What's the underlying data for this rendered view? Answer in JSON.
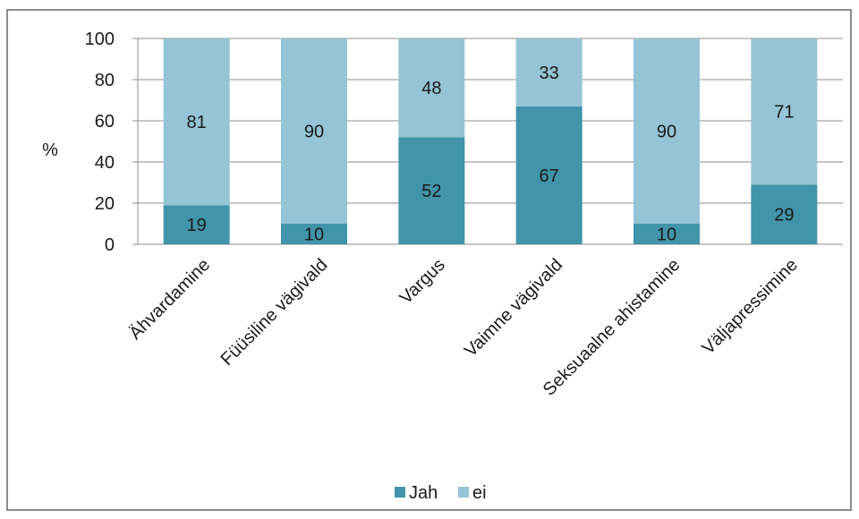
{
  "chart_data": {
    "type": "bar",
    "stacked": true,
    "percent": true,
    "categories": [
      "Ähvardamine",
      "Füüsiline vägivald",
      "Vargus",
      "Vaimne vägivald",
      "Seksuaalne ahistamine",
      "Väljapressimine"
    ],
    "series": [
      {
        "name": "Jah",
        "values": [
          19,
          10,
          52,
          67,
          10,
          29
        ],
        "color": "#4194aa"
      },
      {
        "name": "ei",
        "values": [
          81,
          90,
          48,
          33,
          90,
          71
        ],
        "color": "#94c4d5"
      }
    ],
    "title": "",
    "xlabel": "",
    "ylabel": "%",
    "ylim": [
      0,
      100
    ],
    "yticks": [
      0,
      20,
      40,
      60,
      80,
      100
    ],
    "grid": true,
    "legend": "bottom",
    "data_labels": true
  },
  "colors": {
    "grid": "#8c8c8c",
    "axis": "#8c8c8c",
    "frame": "#8c8c8c"
  }
}
